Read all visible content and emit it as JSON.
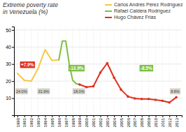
{
  "chart_data": {
    "type": "line",
    "title": "Extreme poverty rate\nin Venezuela (%)",
    "series": [
      {
        "name": "Carlos Andrés Pérez Rodríguez",
        "color": "#f5c842",
        "x": [
          1990,
          1991,
          1992,
          1993,
          1994,
          1995,
          1996
        ],
        "values": [
          24.5,
          20.5,
          20.0,
          27.5,
          38.5,
          32.0,
          32.5
        ]
      },
      {
        "name": "Rafael Caldera Rodríguez",
        "color": "#7dc142",
        "x": [
          1996,
          1996.5,
          1997,
          1997.5,
          1998,
          1998.5,
          1999
        ],
        "values": [
          32.5,
          43.5,
          43.5,
          30.0,
          20.5,
          18.5,
          18.0
        ]
      },
      {
        "name": "Hugo Chávez Frias",
        "color": "#e0301e",
        "marker": "circle",
        "x": [
          1999,
          2000,
          2001,
          2002,
          2003,
          2004,
          2005,
          2006,
          2007,
          2008,
          2009,
          2010,
          2011,
          2012,
          2013
        ],
        "values": [
          18.0,
          16.5,
          17.0,
          25.0,
          30.5,
          22.0,
          15.0,
          11.0,
          9.8,
          9.5,
          9.5,
          9.0,
          8.5,
          7.5,
          10.5
        ]
      }
    ],
    "xlim": [
      1989.5,
      2013.8
    ],
    "xticks": [
      1990,
      1991,
      1992,
      1993,
      1994,
      1995,
      1996,
      1997,
      1998,
      1999,
      2000,
      2001,
      2002,
      2003,
      2004,
      2005,
      2006,
      2007,
      2008,
      2009,
      2010,
      2011,
      2012,
      2013
    ],
    "ylim": [
      0,
      52
    ],
    "yticks": [
      10,
      20,
      30,
      40,
      50
    ],
    "grid": true,
    "legend": "upper right",
    "annotations": [
      {
        "text": "+7.9%",
        "x": 1990.5,
        "y": 29.5,
        "color": "#e0301e"
      },
      {
        "text": "-13.9%",
        "x": 1997.5,
        "y": 27.5,
        "color": "#7dc142"
      },
      {
        "text": "-8.5%",
        "x": 2007.8,
        "y": 27.5,
        "color": "#7dc142"
      },
      {
        "text": "24.0%",
        "x": 1989.8,
        "y": 14.0
      },
      {
        "text": "31.9%",
        "x": 1993.0,
        "y": 14.0
      },
      {
        "text": "18.0%",
        "x": 1998.1,
        "y": 14.0
      },
      {
        "text": "8.8%",
        "x": 2012.2,
        "y": 14.0
      }
    ]
  }
}
